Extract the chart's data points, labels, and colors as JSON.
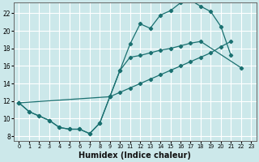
{
  "xlabel": "Humidex (Indice chaleur)",
  "bg_color": "#cce8ea",
  "grid_color": "#ffffff",
  "line_color": "#1a7070",
  "xlim": [
    -0.5,
    23.5
  ],
  "ylim": [
    7.5,
    23.2
  ],
  "xticks": [
    0,
    1,
    2,
    3,
    4,
    5,
    6,
    7,
    8,
    9,
    10,
    11,
    12,
    13,
    14,
    15,
    16,
    17,
    18,
    19,
    20,
    21,
    22,
    23
  ],
  "yticks": [
    8,
    10,
    12,
    14,
    16,
    18,
    20,
    22
  ],
  "line1_x": [
    0,
    1,
    2,
    3,
    4,
    5,
    6,
    7,
    8,
    9,
    10,
    11,
    12,
    13,
    14,
    15,
    16,
    17,
    18,
    19,
    20,
    21
  ],
  "line1_y": [
    11.8,
    10.8,
    10.3,
    9.8,
    9.0,
    8.8,
    8.8,
    8.3,
    9.5,
    12.5,
    15.5,
    18.5,
    20.8,
    20.3,
    21.8,
    22.3,
    23.2,
    23.5,
    22.8,
    22.2,
    20.5,
    17.2
  ],
  "line2_x": [
    0,
    1,
    2,
    3,
    4,
    5,
    6,
    7,
    8,
    9,
    10,
    11,
    12,
    13,
    14,
    15,
    16,
    17,
    18,
    22
  ],
  "line2_y": [
    11.8,
    10.8,
    10.3,
    9.8,
    9.0,
    8.8,
    8.8,
    8.3,
    9.5,
    12.5,
    15.5,
    17.0,
    17.2,
    17.5,
    17.8,
    18.0,
    18.3,
    18.6,
    18.8,
    15.8
  ],
  "line3_x": [
    0,
    9,
    10,
    11,
    12,
    13,
    14,
    15,
    16,
    17,
    18,
    19,
    20,
    21
  ],
  "line3_y": [
    11.8,
    12.5,
    13.0,
    13.5,
    14.0,
    14.5,
    15.0,
    15.5,
    16.0,
    16.5,
    17.0,
    17.5,
    18.2,
    18.8
  ]
}
